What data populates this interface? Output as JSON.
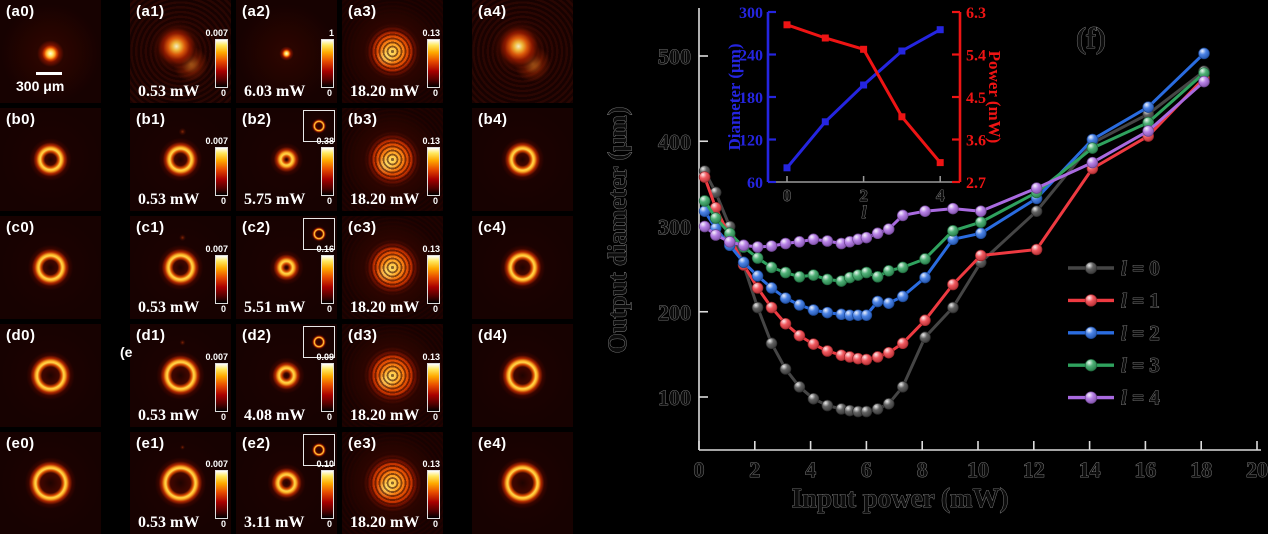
{
  "figure": {
    "stray_label": "(e",
    "colorbar_min": "0",
    "scale_bar_label": "300 μm",
    "panels": [
      {
        "label": "(a0)",
        "row": 0,
        "col": 0,
        "power": null,
        "cb_max": null,
        "scale_bar": true,
        "inset": false,
        "visual": {
          "type": "spot",
          "r": 15
        }
      },
      {
        "label": "(a1)",
        "row": 0,
        "col": 1,
        "power": "0.53 mW",
        "cb_max": "0.007",
        "scale_bar": false,
        "inset": false,
        "visual": {
          "type": "blob",
          "r": 30
        }
      },
      {
        "label": "(a2)",
        "row": 0,
        "col": 2,
        "power": "6.03 mW",
        "cb_max": "1",
        "scale_bar": false,
        "inset": false,
        "visual": {
          "type": "spot",
          "r": 8
        }
      },
      {
        "label": "(a3)",
        "row": 0,
        "col": 3,
        "power": "18.20 mW",
        "cb_max": "0.13",
        "scale_bar": false,
        "inset": false,
        "visual": {
          "type": "speckle",
          "r": 42
        }
      },
      {
        "label": "(a4)",
        "row": 0,
        "col": 4,
        "power": null,
        "cb_max": null,
        "scale_bar": false,
        "inset": false,
        "visual": {
          "type": "blob",
          "r": 31
        }
      },
      {
        "label": "(b0)",
        "row": 1,
        "col": 0,
        "power": null,
        "cb_max": null,
        "scale_bar": false,
        "inset": false,
        "visual": {
          "type": "ring",
          "r": 20
        }
      },
      {
        "label": "(b1)",
        "row": 1,
        "col": 1,
        "power": "0.53 mW",
        "cb_max": "0.007",
        "scale_bar": false,
        "inset": false,
        "visual": {
          "type": "ring",
          "r": 21,
          "lumpy": true
        }
      },
      {
        "label": "(b2)",
        "row": 1,
        "col": 2,
        "power": "5.75 mW",
        "cb_max": "0.38",
        "scale_bar": false,
        "inset": true,
        "visual": {
          "type": "ring",
          "r": 11
        }
      },
      {
        "label": "(b3)",
        "row": 1,
        "col": 3,
        "power": "18.20 mW",
        "cb_max": "0.13",
        "scale_bar": false,
        "inset": false,
        "visual": {
          "type": "speckle",
          "r": 43
        }
      },
      {
        "label": "(b4)",
        "row": 1,
        "col": 4,
        "power": null,
        "cb_max": null,
        "scale_bar": false,
        "inset": false,
        "visual": {
          "type": "ring",
          "r": 21
        }
      },
      {
        "label": "(c0)",
        "row": 2,
        "col": 0,
        "power": null,
        "cb_max": null,
        "scale_bar": false,
        "inset": false,
        "visual": {
          "type": "ring",
          "r": 23
        }
      },
      {
        "label": "(c1)",
        "row": 2,
        "col": 1,
        "power": "0.53 mW",
        "cb_max": "0.007",
        "scale_bar": false,
        "inset": false,
        "visual": {
          "type": "ring",
          "r": 23,
          "lumpy": true
        }
      },
      {
        "label": "(c2)",
        "row": 2,
        "col": 2,
        "power": "5.51 mW",
        "cb_max": "0.16",
        "scale_bar": false,
        "inset": true,
        "visual": {
          "type": "ring",
          "r": 12
        }
      },
      {
        "label": "(c3)",
        "row": 2,
        "col": 3,
        "power": "18.20 mW",
        "cb_max": "0.13",
        "scale_bar": false,
        "inset": false,
        "visual": {
          "type": "speckle",
          "r": 43
        }
      },
      {
        "label": "(c4)",
        "row": 2,
        "col": 4,
        "power": null,
        "cb_max": null,
        "scale_bar": false,
        "inset": false,
        "visual": {
          "type": "ring",
          "r": 23
        }
      },
      {
        "label": "(d0)",
        "row": 3,
        "col": 0,
        "power": null,
        "cb_max": null,
        "scale_bar": false,
        "inset": false,
        "visual": {
          "type": "ring",
          "r": 26
        }
      },
      {
        "label": "(d1)",
        "row": 3,
        "col": 1,
        "power": "0.53 mW",
        "cb_max": "0.007",
        "scale_bar": false,
        "inset": false,
        "visual": {
          "type": "ring",
          "r": 26,
          "lumpy": true
        }
      },
      {
        "label": "(d2)",
        "row": 3,
        "col": 2,
        "power": "4.08 mW",
        "cb_max": "0.09",
        "scale_bar": false,
        "inset": true,
        "visual": {
          "type": "ring",
          "r": 14
        }
      },
      {
        "label": "(d3)",
        "row": 3,
        "col": 3,
        "power": "18.20 mW",
        "cb_max": "0.13",
        "scale_bar": false,
        "inset": false,
        "visual": {
          "type": "speckle",
          "r": 44
        }
      },
      {
        "label": "(d4)",
        "row": 3,
        "col": 4,
        "power": null,
        "cb_max": null,
        "scale_bar": false,
        "inset": false,
        "visual": {
          "type": "ring",
          "r": 26
        }
      },
      {
        "label": "(e0)",
        "row": 4,
        "col": 0,
        "power": null,
        "cb_max": null,
        "scale_bar": false,
        "inset": false,
        "visual": {
          "type": "ring",
          "r": 29
        }
      },
      {
        "label": "(e1)",
        "row": 4,
        "col": 1,
        "power": "0.53 mW",
        "cb_max": "0.007",
        "scale_bar": false,
        "inset": false,
        "visual": {
          "type": "ring",
          "r": 29,
          "lumpy": true
        }
      },
      {
        "label": "(e2)",
        "row": 4,
        "col": 2,
        "power": "3.11 mW",
        "cb_max": "0.10",
        "scale_bar": false,
        "inset": true,
        "visual": {
          "type": "ring",
          "r": 16
        }
      },
      {
        "label": "(e3)",
        "row": 4,
        "col": 3,
        "power": "18.20 mW",
        "cb_max": "0.13",
        "scale_bar": false,
        "inset": false,
        "visual": {
          "type": "speckle",
          "r": 45
        }
      },
      {
        "label": "(e4)",
        "row": 4,
        "col": 4,
        "power": null,
        "cb_max": null,
        "scale_bar": false,
        "inset": false,
        "visual": {
          "type": "ring",
          "r": 29
        }
      }
    ]
  },
  "chart_data": [
    {
      "type": "line",
      "title": "(f)",
      "xlabel": "Input power (mW)",
      "ylabel": "Output diameter (μm)",
      "x_ticks": [
        0,
        2,
        4,
        6,
        8,
        10,
        12,
        14,
        16,
        18,
        20
      ],
      "y_ticks": [
        100,
        200,
        300,
        400,
        500
      ],
      "xlim": [
        0,
        20
      ],
      "ylim": [
        60,
        530
      ],
      "grid": false,
      "legend_position": "right-middle",
      "x": [
        0.2,
        0.6,
        1.1,
        1.6,
        2.1,
        2.6,
        3.1,
        3.6,
        4.1,
        4.6,
        5.1,
        5.4,
        5.7,
        6.0,
        6.4,
        6.8,
        7.3,
        8.1,
        9.1,
        10.1,
        12.1,
        14.1,
        16.1,
        18.1
      ],
      "series": [
        {
          "name": "l = 0",
          "color": "#454545",
          "values": [
            365,
            340,
            300,
            255,
            205,
            163,
            133,
            112,
            98,
            90,
            86,
            84,
            83,
            83,
            86,
            92,
            112,
            170,
            205,
            258,
            318,
            398,
            432,
            482
          ]
        },
        {
          "name": "l = 1",
          "color": "#ee3a41",
          "values": [
            358,
            322,
            288,
            255,
            228,
            205,
            186,
            172,
            162,
            154,
            149,
            147,
            145,
            144,
            147,
            152,
            163,
            190,
            232,
            266,
            273,
            368,
            406,
            474
          ]
        },
        {
          "name": "l = 2",
          "color": "#2a6ce0",
          "values": [
            318,
            298,
            278,
            258,
            242,
            228,
            216,
            208,
            202,
            199,
            197,
            196,
            196,
            196,
            212,
            210,
            218,
            240,
            285,
            292,
            333,
            402,
            440,
            503
          ]
        },
        {
          "name": "l = 3",
          "color": "#2fa25e",
          "values": [
            330,
            310,
            292,
            276,
            263,
            252,
            246,
            241,
            243,
            238,
            236,
            240,
            243,
            246,
            241,
            248,
            252,
            262,
            295,
            305,
            340,
            392,
            422,
            480
          ]
        },
        {
          "name": "l = 4",
          "color": "#a96ae0",
          "values": [
            300,
            290,
            282,
            278,
            276,
            277,
            280,
            282,
            285,
            283,
            280,
            282,
            285,
            287,
            292,
            297,
            313,
            318,
            321,
            318,
            345,
            375,
            412,
            470
          ]
        }
      ]
    },
    {
      "type": "line",
      "title": "",
      "xlabel": "l",
      "ylabel_left": "Diameter (μm)",
      "ylabel_right": "Power (mW)",
      "x_ticks": [
        0,
        2,
        4
      ],
      "left_ticks": [
        60,
        120,
        180,
        240,
        300
      ],
      "right_ticks": [
        2.7,
        3.6,
        4.5,
        5.4,
        6.3
      ],
      "left_color": "#2525e0",
      "right_color": "#ee1414",
      "x": [
        0,
        1,
        2,
        3,
        4
      ],
      "series": [
        {
          "name": "Diameter",
          "axis": "left",
          "color": "#2525e0",
          "values": [
            80,
            145,
            197,
            245,
            275
          ]
        },
        {
          "name": "Power",
          "axis": "right",
          "color": "#ee1414",
          "values": [
            6.03,
            5.75,
            5.51,
            4.08,
            3.11
          ]
        }
      ]
    }
  ]
}
